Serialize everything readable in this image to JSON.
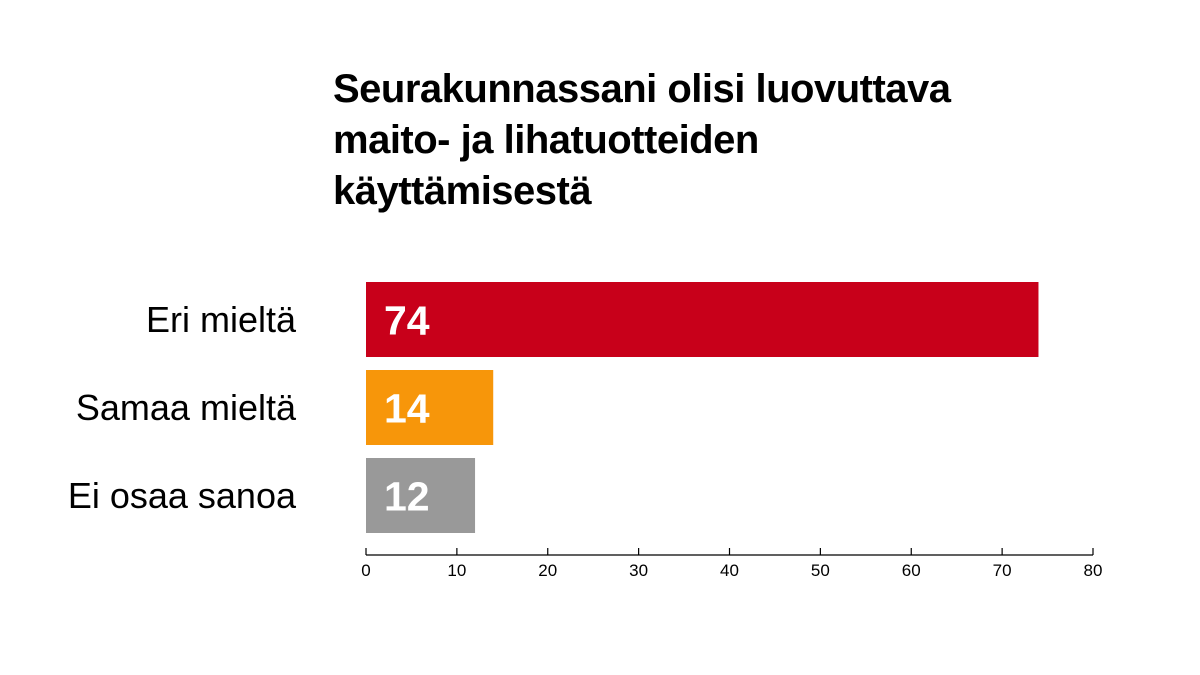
{
  "chart_data": {
    "type": "bar",
    "orientation": "horizontal",
    "title": "Seurakunnassani olisi luovuttava\nmaito-  ja lihatuotteiden\nkäyttämisestä",
    "categories": [
      "Eri mieltä",
      "Samaa mieltä",
      "Ei osaa sanoa"
    ],
    "values": [
      74,
      14,
      12
    ],
    "colors": [
      "#c8001a",
      "#f7960a",
      "#999999"
    ],
    "data_labels": [
      "74",
      "14",
      "12"
    ],
    "xlim": [
      0,
      80
    ],
    "x_ticks": [
      0,
      10,
      20,
      30,
      40,
      50,
      60,
      70,
      80
    ],
    "xlabel": "",
    "ylabel": "",
    "grid": false,
    "legend": "none"
  }
}
